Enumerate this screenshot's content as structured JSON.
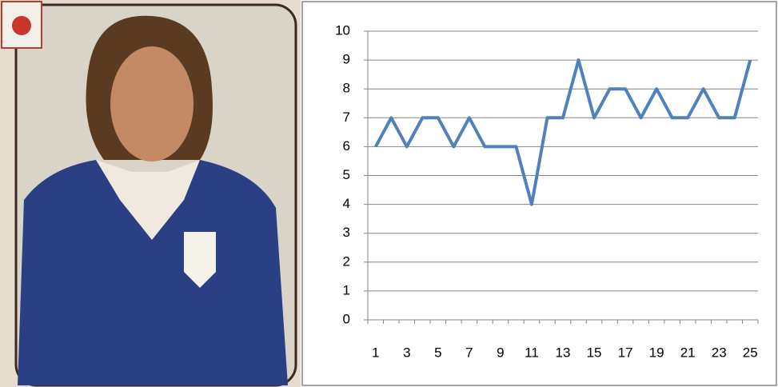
{
  "chart_data": {
    "type": "line",
    "categories": [
      "1",
      null,
      "3",
      null,
      "5",
      null,
      "7",
      null,
      "9",
      null,
      "11",
      null,
      "13",
      null,
      "15",
      null,
      "17",
      null,
      "19",
      null,
      "21",
      null,
      "23",
      null,
      "25"
    ],
    "values": [
      6,
      7,
      6,
      7,
      7,
      6,
      7,
      6,
      6,
      6,
      4,
      7,
      7,
      9,
      7,
      8,
      8,
      7,
      8,
      7,
      7,
      8,
      7,
      7,
      9
    ],
    "color": "#4f81bd",
    "ylim": [
      0,
      10
    ],
    "yticks": [
      0,
      1,
      2,
      3,
      4,
      5,
      6,
      7,
      8,
      9,
      10
    ],
    "grid": true
  }
}
